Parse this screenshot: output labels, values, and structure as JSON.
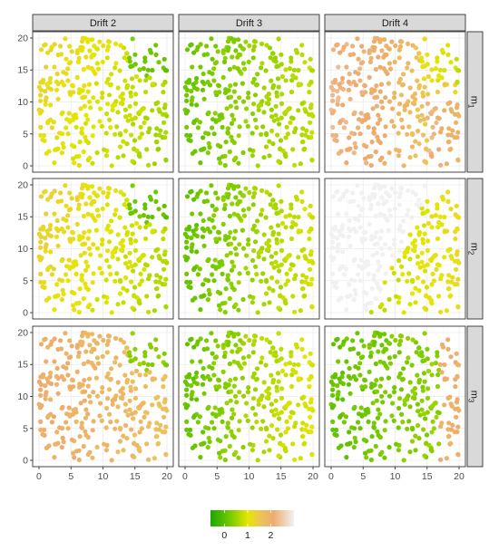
{
  "chart_data": {
    "type": "scatter",
    "grid": "facet 3x3",
    "columns": [
      "Drift 2",
      "Drift 3",
      "Drift 4"
    ],
    "rows": [
      {
        "symbol": "m",
        "sub": "1"
      },
      {
        "symbol": "m",
        "sub": "2"
      },
      {
        "symbol": "m",
        "sub": "3"
      }
    ],
    "xlim": [
      0,
      20
    ],
    "ylim": [
      0,
      20
    ],
    "x_ticks": [
      "0",
      "5",
      "10",
      "15",
      "20"
    ],
    "y_ticks": [
      "0",
      "5",
      "10",
      "15",
      "20"
    ],
    "title": "",
    "xlabel": "",
    "ylabel": "",
    "color_scale": {
      "stops": [
        {
          "value": -0.6,
          "color": "#1aa800"
        },
        {
          "value": 0.3,
          "color": "#7ccc00"
        },
        {
          "value": 1.0,
          "color": "#e6e600"
        },
        {
          "value": 1.6,
          "color": "#ecc35a"
        },
        {
          "value": 2.1,
          "color": "#eeaa6e"
        },
        {
          "value": 3.0,
          "color": "#f1f1f1"
        }
      ],
      "legend_ticks": [
        "0",
        "1",
        "2"
      ],
      "legend_position": "bottom",
      "grid_background": "#f0f0f0",
      "point_color_note": "points coloured by value"
    },
    "points_per_panel": 320,
    "point_value_model": "value varies smoothly over x,y in each panel"
  }
}
